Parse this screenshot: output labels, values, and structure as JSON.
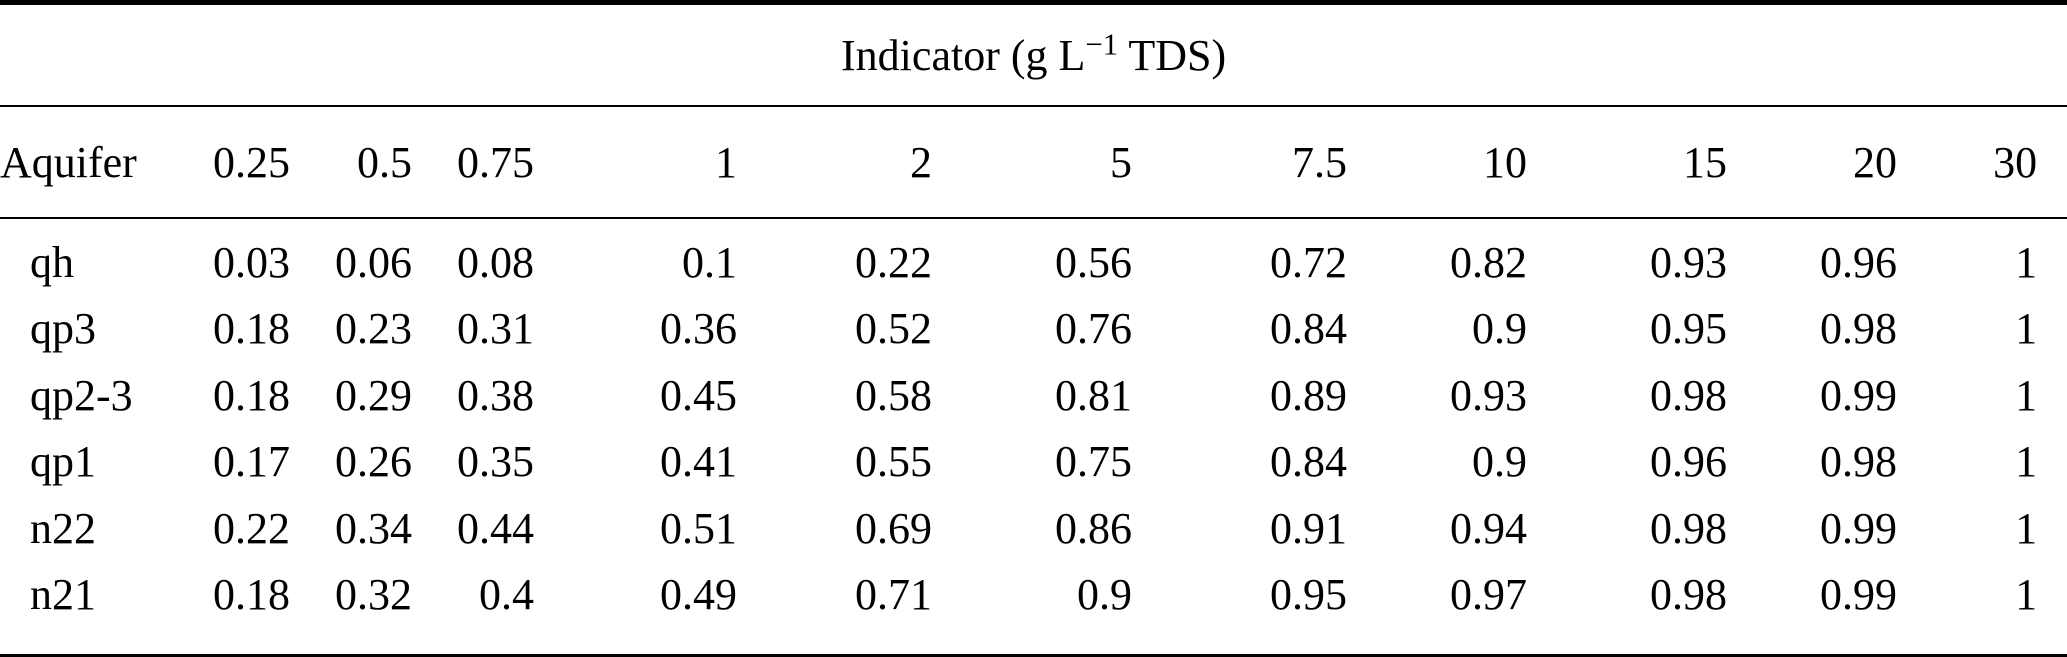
{
  "table": {
    "title": {
      "prefix": "Indicator (g L",
      "superscript": "−1",
      "suffix": " TDS)"
    },
    "columns": [
      "Aquifer",
      "0.25",
      "0.5",
      "0.75",
      "1",
      "2",
      "5",
      "7.5",
      "10",
      "15",
      "20",
      "30"
    ],
    "rows": [
      {
        "aquifer": "qh",
        "values": [
          "0.03",
          "0.06",
          "0.08",
          "0.1",
          "0.22",
          "0.56",
          "0.72",
          "0.82",
          "0.93",
          "0.96",
          "1"
        ]
      },
      {
        "aquifer": "qp3",
        "values": [
          "0.18",
          "0.23",
          "0.31",
          "0.36",
          "0.52",
          "0.76",
          "0.84",
          "0.9",
          "0.95",
          "0.98",
          "1"
        ]
      },
      {
        "aquifer": "qp2-3",
        "values": [
          "0.18",
          "0.29",
          "0.38",
          "0.45",
          "0.58",
          "0.81",
          "0.89",
          "0.93",
          "0.98",
          "0.99",
          "1"
        ]
      },
      {
        "aquifer": "qp1",
        "values": [
          "0.17",
          "0.26",
          "0.35",
          "0.41",
          "0.55",
          "0.75",
          "0.84",
          "0.9",
          "0.96",
          "0.98",
          "1"
        ]
      },
      {
        "aquifer": "n22",
        "values": [
          "0.22",
          "0.34",
          "0.44",
          "0.51",
          "0.69",
          "0.86",
          "0.91",
          "0.94",
          "0.98",
          "0.99",
          "1"
        ]
      },
      {
        "aquifer": "n21",
        "values": [
          "0.18",
          "0.32",
          "0.4",
          "0.49",
          "0.71",
          "0.9",
          "0.95",
          "0.97",
          "0.98",
          "0.99",
          "1"
        ]
      }
    ],
    "colors": {
      "text": "#000000",
      "background": "#ffffff",
      "rule": "#000000"
    }
  }
}
